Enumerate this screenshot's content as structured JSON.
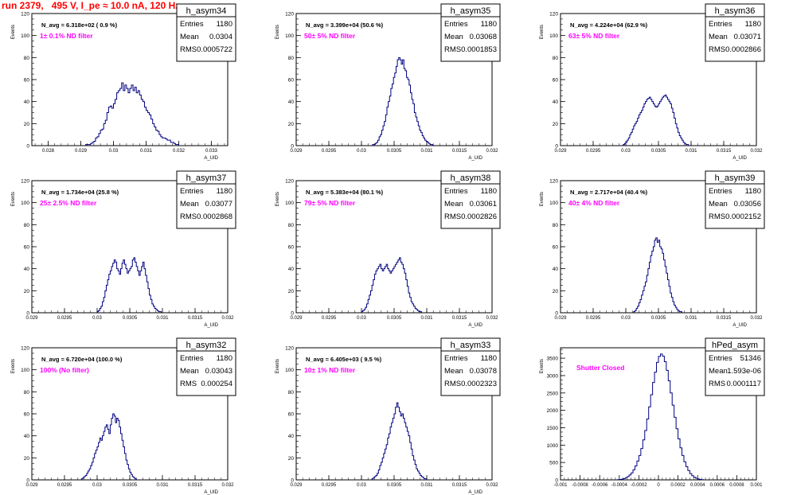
{
  "run_title": "run 2379,   495 V, I_pe ≈ 10.0 nA, 120 Hz",
  "colors": {
    "hist": "#000080",
    "annotation": "#ff00ff",
    "title": "#ff0000",
    "frame": "#000000"
  },
  "chart_data": [
    {
      "type": "histogram",
      "name": "h_asym34",
      "navg": "N_avg = 6.318e+02 ( 0.9 %)",
      "filter": "1± 0.1% ND filter",
      "stats": {
        "entries": "1180",
        "mean": "0.0304",
        "rms": "0.0005722"
      },
      "ylabel": "Events",
      "xlabel": "A_UID",
      "xlim": [
        0.0275,
        0.0335
      ],
      "ylim": [
        0,
        120
      ],
      "xticks": [
        0.028,
        0.029,
        0.03,
        0.031,
        0.032,
        0.033
      ],
      "xtick_labels": [
        "0.028",
        "0.029",
        "0.03",
        "0.031",
        "0.032",
        "0.033"
      ],
      "yticks": [
        0,
        20,
        40,
        60,
        80,
        100,
        120
      ],
      "x_start": 0.02915,
      "bin_width": 5e-05,
      "values": [
        1,
        1,
        1,
        2,
        3,
        4,
        7,
        8,
        11,
        14,
        15,
        20,
        23,
        30,
        35,
        36,
        34,
        38,
        42,
        48,
        50,
        52,
        57,
        50,
        55,
        52,
        48,
        52,
        55,
        50,
        53,
        48,
        50,
        46,
        42,
        40,
        35,
        32,
        30,
        28,
        24,
        20,
        17,
        14,
        13,
        10,
        8,
        7,
        7,
        6,
        5,
        5,
        3,
        3,
        2,
        1,
        1
      ]
    },
    {
      "type": "histogram",
      "name": "h_asym35",
      "navg": "N_avg = 3.399e+04 (50.6 %)",
      "filter": "50± 5% ND filter",
      "stats": {
        "entries": "1180",
        "mean": "0.03068",
        "rms": "0.0001853"
      },
      "ylabel": "Events",
      "xlabel": "A_UID",
      "xlim": [
        0.029,
        0.032
      ],
      "ylim": [
        0,
        120
      ],
      "xticks": [
        0.029,
        0.0295,
        0.03,
        0.0305,
        0.031,
        0.0315,
        0.032
      ],
      "xtick_labels": [
        "0.029",
        "0.0295",
        "0.03",
        "0.0305",
        "0.031",
        "0.0315",
        "0.032"
      ],
      "yticks": [
        0,
        20,
        40,
        60,
        80,
        100,
        120
      ],
      "x_start": 0.03017,
      "bin_width": 2e-05,
      "values": [
        1,
        1,
        2,
        3,
        5,
        8,
        10,
        14,
        18,
        22,
        28,
        35,
        40,
        45,
        52,
        56,
        62,
        66,
        72,
        78,
        80,
        78,
        74,
        78,
        70,
        68,
        62,
        60,
        55,
        48,
        42,
        38,
        30,
        26,
        22,
        18,
        14,
        12,
        9,
        7,
        5,
        4,
        3,
        2,
        1,
        1
      ]
    },
    {
      "type": "histogram",
      "name": "h_asym36",
      "navg": "N_avg = 4.224e+04 (62.9 %)",
      "filter": "63± 5% ND filter",
      "stats": {
        "entries": "1180",
        "mean": "0.03071",
        "rms": "0.0002866"
      },
      "ylabel": "Events",
      "xlabel": "A_UID",
      "xlim": [
        0.029,
        0.032
      ],
      "ylim": [
        0,
        120
      ],
      "xticks": [
        0.029,
        0.0295,
        0.03,
        0.0305,
        0.031,
        0.0315,
        0.032
      ],
      "xtick_labels": [
        "0.029",
        "0.0295",
        "0.03",
        "0.0305",
        "0.031",
        "0.0315",
        "0.032"
      ],
      "yticks": [
        0,
        20,
        40,
        60,
        80,
        100,
        120
      ],
      "x_start": 0.02996,
      "bin_width": 2e-05,
      "values": [
        1,
        2,
        3,
        5,
        7,
        10,
        12,
        15,
        18,
        20,
        22,
        25,
        28,
        30,
        32,
        35,
        38,
        40,
        42,
        43,
        44,
        42,
        40,
        38,
        36,
        35,
        36,
        38,
        40,
        42,
        44,
        45,
        46,
        44,
        42,
        40,
        38,
        34,
        30,
        25,
        20,
        16,
        12,
        9,
        7,
        5,
        3,
        2,
        1,
        1
      ]
    },
    {
      "type": "histogram",
      "name": "h_asym37",
      "navg": "N_avg = 1.734e+04 (25.8 %)",
      "filter": "25± 2.5% ND filter",
      "stats": {
        "entries": "1180",
        "mean": "0.03077",
        "rms": "0.0002868"
      },
      "ylabel": "Events",
      "xlabel": "A_UID",
      "xlim": [
        0.029,
        0.032
      ],
      "ylim": [
        0,
        120
      ],
      "xticks": [
        0.029,
        0.0295,
        0.03,
        0.0305,
        0.031,
        0.0315,
        0.032
      ],
      "xtick_labels": [
        "0.029",
        "0.0295",
        "0.03",
        "0.0305",
        "0.031",
        "0.0315",
        "0.032"
      ],
      "yticks": [
        0,
        20,
        40,
        60,
        80,
        100,
        120
      ],
      "x_start": 0.03,
      "bin_width": 2e-05,
      "values": [
        1,
        2,
        4,
        6,
        10,
        14,
        20,
        25,
        30,
        35,
        38,
        42,
        45,
        48,
        46,
        40,
        38,
        35,
        40,
        45,
        48,
        44,
        40,
        36,
        38,
        40,
        42,
        48,
        50,
        46,
        42,
        38,
        34,
        38,
        42,
        46,
        40,
        34,
        28,
        22,
        16,
        12,
        8,
        6,
        4,
        3,
        2,
        1,
        1
      ]
    },
    {
      "type": "histogram",
      "name": "h_asym38",
      "navg": "N_avg = 5.383e+04 (80.1 %)",
      "filter": "79± 5% ND filter",
      "stats": {
        "entries": "1180",
        "mean": "0.03061",
        "rms": "0.0002826"
      },
      "ylabel": "Events",
      "xlabel": "A_UID",
      "xlim": [
        0.029,
        0.032
      ],
      "ylim": [
        0,
        120
      ],
      "xticks": [
        0.029,
        0.0295,
        0.03,
        0.0305,
        0.031,
        0.0315,
        0.032
      ],
      "xtick_labels": [
        "0.029",
        "0.0295",
        "0.03",
        "0.0305",
        "0.031",
        "0.0315",
        "0.032"
      ],
      "yticks": [
        0,
        20,
        40,
        60,
        80,
        100,
        120
      ],
      "x_start": 0.03,
      "bin_width": 2e-05,
      "values": [
        1,
        2,
        3,
        5,
        8,
        12,
        16,
        20,
        25,
        30,
        35,
        38,
        40,
        42,
        44,
        40,
        38,
        40,
        42,
        44,
        40,
        38,
        36,
        38,
        40,
        42,
        44,
        46,
        48,
        50,
        46,
        44,
        40,
        36,
        30,
        24,
        18,
        14,
        10,
        8,
        6,
        4,
        3,
        2,
        1,
        1
      ]
    },
    {
      "type": "histogram",
      "name": "h_asym39",
      "navg": "N_avg = 2.717e+04 (40.4 %)",
      "filter": "40± 4% ND filter",
      "stats": {
        "entries": "1180",
        "mean": "0.03056",
        "rms": "0.0002152"
      },
      "ylabel": "Events",
      "xlabel": "A_UID",
      "xlim": [
        0.029,
        0.032
      ],
      "ylim": [
        0,
        120
      ],
      "xticks": [
        0.029,
        0.0295,
        0.03,
        0.0305,
        0.031,
        0.0315,
        0.032
      ],
      "xtick_labels": [
        "0.029",
        "0.0295",
        "0.03",
        "0.0305",
        "0.031",
        "0.0315",
        "0.032"
      ],
      "yticks": [
        0,
        20,
        40,
        60,
        80,
        100,
        120
      ],
      "x_start": 0.03012,
      "bin_width": 2e-05,
      "values": [
        1,
        2,
        4,
        6,
        9,
        12,
        16,
        20,
        24,
        28,
        34,
        40,
        46,
        52,
        56,
        60,
        66,
        68,
        64,
        66,
        60,
        58,
        54,
        48,
        42,
        36,
        30,
        24,
        18,
        14,
        10,
        7,
        5,
        3,
        2,
        1,
        1
      ]
    },
    {
      "type": "histogram",
      "name": "h_asym32",
      "navg": "N_avg = 6.720e+04 (100.0 %)",
      "filter": "100% (No filter)",
      "stats": {
        "entries": "1180",
        "mean": "0.03043",
        "rms": "0.000254"
      },
      "ylabel": "Events",
      "xlabel": "A_UID",
      "xlim": [
        0.029,
        0.032
      ],
      "ylim": [
        0,
        120
      ],
      "xticks": [
        0.029,
        0.0295,
        0.03,
        0.0305,
        0.031,
        0.0315,
        0.032
      ],
      "xtick_labels": [
        "0.029",
        "0.0295",
        "0.03",
        "0.0305",
        "0.031",
        "0.0315",
        "0.032"
      ],
      "yticks": [
        0,
        20,
        40,
        60,
        80,
        100,
        120
      ],
      "x_start": 0.02976,
      "bin_width": 2e-05,
      "values": [
        1,
        2,
        3,
        4,
        6,
        8,
        10,
        13,
        16,
        20,
        24,
        27,
        30,
        34,
        38,
        36,
        40,
        44,
        48,
        50,
        46,
        42,
        50,
        56,
        60,
        58,
        52,
        56,
        54,
        48,
        42,
        36,
        30,
        24,
        18,
        14,
        10,
        7,
        5,
        3,
        2,
        1
      ]
    },
    {
      "type": "histogram",
      "name": "h_asym33",
      "navg": "N_avg = 6.405e+03 ( 9.5 %)",
      "filter": "10± 1% ND filter",
      "stats": {
        "entries": "1180",
        "mean": "0.03078",
        "rms": "0.0002323"
      },
      "ylabel": "Events",
      "xlabel": "A_UID",
      "xlim": [
        0.029,
        0.032
      ],
      "ylim": [
        0,
        120
      ],
      "xticks": [
        0.029,
        0.0295,
        0.03,
        0.0305,
        0.031,
        0.0315,
        0.032
      ],
      "xtick_labels": [
        "0.029",
        "0.0295",
        "0.03",
        "0.0305",
        "0.031",
        "0.0315",
        "0.032"
      ],
      "yticks": [
        0,
        20,
        40,
        60,
        80,
        100,
        120
      ],
      "x_start": 0.03016,
      "bin_width": 2e-05,
      "values": [
        1,
        2,
        3,
        4,
        6,
        9,
        13,
        16,
        20,
        24,
        28,
        32,
        38,
        42,
        48,
        52,
        56,
        60,
        66,
        70,
        66,
        62,
        58,
        60,
        56,
        52,
        48,
        44,
        40,
        34,
        28,
        22,
        18,
        14,
        10,
        8,
        6,
        4,
        3,
        2,
        1,
        1
      ]
    },
    {
      "type": "histogram",
      "name": "hPed_asym",
      "navg": "",
      "filter": "Shutter Closed",
      "stats": {
        "entries": "51346",
        "mean": "1.593e-06",
        "rms": "0.0001117"
      },
      "ylabel": "Events",
      "xlabel": "",
      "xlim": [
        -0.001,
        0.001
      ],
      "ylim": [
        0,
        3800
      ],
      "xticks": [
        -0.001,
        -0.0008,
        -0.0006,
        -0.0004,
        -0.0002,
        0,
        0.0002,
        0.0004,
        0.0006,
        0.0008,
        0.001
      ],
      "xtick_labels": [
        "-0.001",
        "-0.0008",
        "-0.0006",
        "-0.0004",
        "-0.0002",
        "0",
        "0.0002",
        "0.0004",
        "0.0006",
        "0.0008",
        "0.001"
      ],
      "yticks": [
        0,
        500,
        1000,
        1500,
        2000,
        2500,
        3000,
        3500
      ],
      "x_start": -0.00042,
      "bin_width": 2e-05,
      "values": [
        5,
        10,
        20,
        35,
        60,
        95,
        140,
        200,
        290,
        400,
        540,
        700,
        900,
        1150,
        1420,
        1750,
        2100,
        2450,
        2800,
        3100,
        3380,
        3550,
        3620,
        3560,
        3400,
        3150,
        2850,
        2500,
        2150,
        1800,
        1470,
        1180,
        920,
        700,
        520,
        380,
        270,
        180,
        120,
        75,
        45,
        25,
        12,
        6
      ]
    }
  ]
}
